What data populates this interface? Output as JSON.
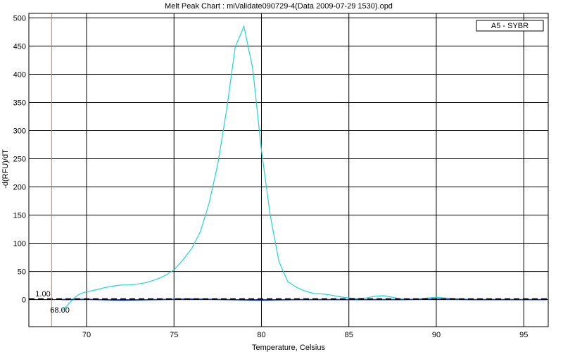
{
  "chart_data": {
    "type": "line",
    "title": "Melt Peak Chart : miValidate090729-4(Data 2009-07-29 1530).opd",
    "xlabel": "Temperature, Celsius",
    "ylabel": "-d(RFU)/dT",
    "xlim": [
      66.7,
      96.4
    ],
    "ylim": [
      -48,
      508
    ],
    "grid": true,
    "legend": {
      "position": "top-right",
      "entries": [
        "A5 - SYBR"
      ]
    },
    "x_ticks": [
      "70",
      "75",
      "80",
      "85",
      "90",
      "95"
    ],
    "x_tick_values": [
      70,
      75,
      80,
      85,
      90,
      95
    ],
    "y_ticks": [
      "0",
      "50",
      "100",
      "150",
      "200",
      "250",
      "300",
      "350",
      "400",
      "450",
      "500"
    ],
    "y_tick_values": [
      0,
      50,
      100,
      150,
      200,
      250,
      300,
      350,
      400,
      450,
      500
    ],
    "threshold": {
      "value": 1.0,
      "label": "1.00"
    },
    "marker": {
      "x": 68.0,
      "label": "68.00",
      "color": "#e07050"
    },
    "series": [
      {
        "name": "A5 - SYBR",
        "color": "#1fd3d3",
        "x": [
          68.6,
          68.9,
          69.2,
          69.5,
          69.7,
          70.0,
          70.5,
          71.0,
          71.5,
          72.0,
          72.5,
          73.0,
          73.5,
          74.0,
          74.5,
          75.0,
          75.5,
          76.0,
          76.5,
          77.0,
          77.5,
          78.0,
          78.5,
          79.0,
          79.5,
          80.0,
          80.5,
          81.0,
          81.5,
          82.0,
          82.5,
          83.0,
          83.5,
          84.0,
          84.5,
          85.0,
          85.5,
          86.0,
          86.5,
          87.0,
          87.5,
          88.0,
          88.5,
          89.0,
          89.5,
          90.0,
          90.5,
          91.0,
          91.5,
          92.0,
          93.0,
          94.0,
          95.0,
          96.3
        ],
        "y": [
          -20,
          -10,
          0,
          8,
          11,
          14,
          17,
          21,
          24,
          26,
          26,
          28,
          31,
          36,
          43,
          53,
          70,
          90,
          120,
          170,
          240,
          335,
          448,
          485,
          410,
          265,
          150,
          68,
          32,
          22,
          15,
          11,
          10,
          8,
          5,
          3,
          2,
          3,
          6,
          7,
          4,
          1,
          0,
          1,
          3,
          4,
          3,
          2,
          1,
          0,
          0,
          0,
          0,
          0
        ]
      },
      {
        "name": "",
        "color": "#1030c0",
        "x": [
          68.6,
          70.0,
          72.0,
          74.0,
          76.0,
          78.0,
          80.0,
          82.0,
          84.0,
          86.0,
          88.0,
          90.0,
          92.0,
          94.0,
          96.3
        ],
        "y": [
          0,
          0.5,
          -1,
          0,
          1,
          0,
          -1,
          0,
          0,
          0,
          0,
          1,
          0,
          0,
          0
        ]
      }
    ]
  }
}
